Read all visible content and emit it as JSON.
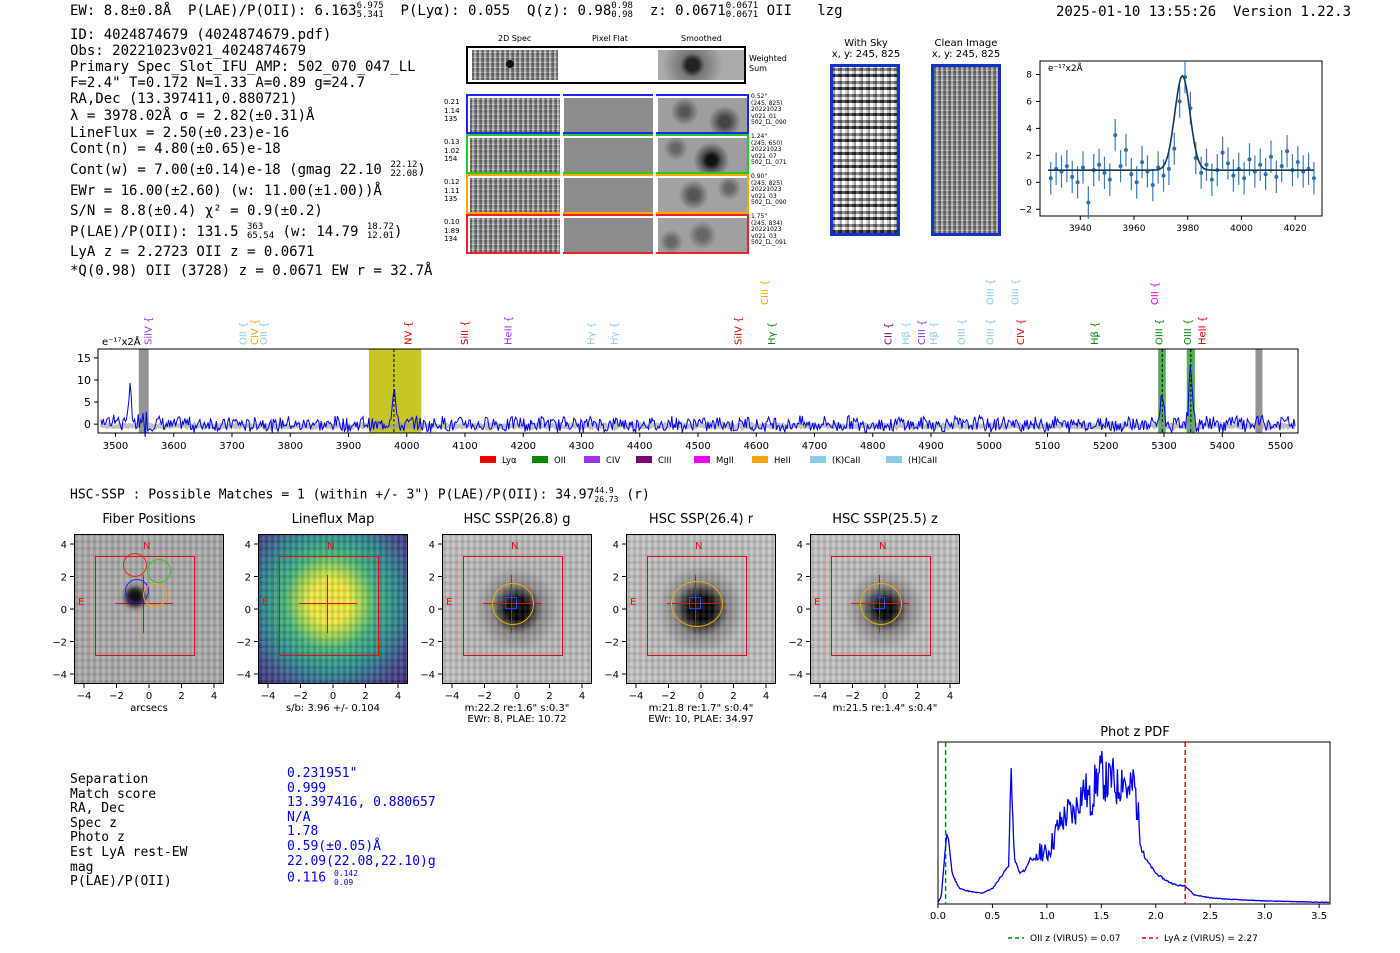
{
  "header": {
    "ew": "EW: 8.8±0.8Å",
    "plae_label": "P(LAE)/P(OII): 6.163",
    "plae_hi": "6.975",
    "plae_lo": "5.341",
    "plya": "P(Lyα): 0.055",
    "qz_label": "Q(z): 0.98",
    "qz_hi": "0.98",
    "qz_lo": "0.98",
    "z_label": "z: 0.0671",
    "z_hi": "0.0671",
    "z_lo": "0.0671",
    "line": "OII",
    "tag": "lzg",
    "timestamp": "2025-01-10 13:55:26",
    "version": "Version 1.22.3"
  },
  "info": {
    "id": "ID: 4024874679 (4024874679.pdf)",
    "obs": "Obs: 20221023v021_4024874679",
    "primary": "Primary Spec_Slot_IFU_AMP: 502_070_047_LL",
    "params": "F=2.4\"  T=0.172  N=1.33  A=0.89  g=24.7",
    "radec": "RA,Dec (13.397411,0.880721)",
    "lambda": "λ = 3978.02Å  σ = 2.82(±0.31)Å",
    "lineflux": "LineFlux = 2.50(±0.23)e-16",
    "contn": "Cont(n) = 4.80(±0.65)e-18",
    "contw": "Cont(w) = 7.00(±0.14)e-18 (gmag 22.10",
    "contw_hi": "22.12",
    "contw_lo": "22.08",
    "contw_end": ")",
    "ewr": "EWr = 16.00(±2.60) (w: 11.00(±1.00))Å",
    "sn": "S/N = 8.8(±0.4)  χ² = 0.9(±0.2)",
    "plae": "P(LAE)/P(OII): 131.5",
    "plae_hi": "363",
    "plae_lo": "65.54",
    "plae_w": "(w: 14.79",
    "plae_w_hi": "18.72",
    "plae_w_lo": "12.01",
    "plae_end": ")",
    "lya_z": "LyA z = 2.2723   OII z = 0.0671",
    "qline": "*Q(0.98) OII (3728) z = 0.0671  EW r = 32.7Å"
  },
  "spec2d": {
    "col_titles": [
      "2D Spec",
      "Pixel Flat",
      "Smoothed"
    ],
    "weighted_label": [
      "Weighted",
      "Sum"
    ],
    "rows": [
      {
        "left": [
          "0.21",
          "1.14",
          "135"
        ],
        "right": [
          "0.52\"",
          "(245, 825)",
          "20221023",
          "v021_01",
          "502_LL_090"
        ],
        "color": "#2222ff"
      },
      {
        "left": [
          "0.13",
          "1.02",
          "154"
        ],
        "right": [
          "1.24\"",
          "(245, 650)",
          "20221023",
          "v021_07",
          "502_LL_071"
        ],
        "color": "#22cc22"
      },
      {
        "left": [
          "0.12",
          "1.11",
          "135"
        ],
        "right": [
          "0.90\"",
          "(245, 825)",
          "20221023",
          "v021_03",
          "502_LL_090"
        ],
        "color": "#ffa500"
      },
      {
        "left": [
          "0.10",
          "1.89",
          "134"
        ],
        "right": [
          "1.75\"",
          "(245, 834)",
          "20221023",
          "v021_03",
          "502_LL_091"
        ],
        "color": "#ee2222"
      }
    ]
  },
  "cutouts": {
    "with_sky_title": "With Sky",
    "with_sky_sub": "x, y: 245, 825",
    "clean_title": "Clean Image",
    "clean_sub": "x, y: 245, 825"
  },
  "zoom_chart": {
    "unit_label": "e⁻¹⁷x2Å",
    "x_ticks": [
      "3940",
      "3960",
      "3980",
      "4000",
      "4020"
    ],
    "y_ticks": [
      "8",
      "6",
      "4",
      "2",
      "0",
      "−2"
    ]
  },
  "chart_data": [
    {
      "type": "scatter",
      "title": "",
      "xlabel": "",
      "ylabel": "e-17 x2Å",
      "xlim": [
        3925,
        4030
      ],
      "ylim": [
        -2.5,
        9
      ],
      "fit": {
        "center": 3978.02,
        "sigma": 2.82,
        "amplitude": 7.0,
        "baseline": 0.9
      },
      "x": [
        3929,
        3931,
        3933,
        3935,
        3937,
        3939,
        3941,
        3943,
        3945,
        3947,
        3949,
        3951,
        3953,
        3955,
        3957,
        3959,
        3961,
        3963,
        3965,
        3967,
        3969,
        3971,
        3973,
        3975,
        3977,
        3979,
        3981,
        3983,
        3985,
        3987,
        3989,
        3991,
        3993,
        3995,
        3997,
        3999,
        4001,
        4003,
        4005,
        4007,
        4009,
        4011,
        4013,
        4015,
        4017,
        4019,
        4021,
        4023,
        4025,
        4027
      ],
      "y": [
        0.3,
        1.0,
        0.8,
        1.2,
        0.4,
        0.0,
        1.1,
        -1.5,
        0.9,
        1.3,
        0.7,
        0.2,
        3.5,
        1.2,
        2.4,
        0.6,
        0.0,
        1.5,
        0.8,
        -0.2,
        1.1,
        0.5,
        1.0,
        2.5,
        6.0,
        7.8,
        5.5,
        1.8,
        0.7,
        1.3,
        0.2,
        0.9,
        2.2,
        1.4,
        0.5,
        1.0,
        0.3,
        1.7,
        0.8,
        1.3,
        0.6,
        1.9,
        0.4,
        1.2,
        2.3,
        0.9,
        1.5,
        0.8,
        1.0,
        0.3
      ],
      "err": 1.2,
      "x_ticks": [
        3940,
        3960,
        3980,
        4000,
        4020
      ],
      "y_ticks": [
        -2,
        0,
        2,
        4,
        6,
        8
      ]
    },
    {
      "type": "line",
      "title": "",
      "ylabel": "e-17 x2Å",
      "xlim": [
        3470,
        5530
      ],
      "ylim": [
        -2,
        17
      ],
      "x_ticks": [
        3500,
        3600,
        3700,
        3800,
        3900,
        4000,
        4100,
        4200,
        4300,
        4400,
        4500,
        4600,
        4700,
        4800,
        4900,
        5000,
        5100,
        5200,
        5300,
        5400,
        5500
      ],
      "y_ticks": [
        0,
        5,
        10,
        15
      ],
      "features": [
        {
          "name": "emission",
          "x": 3978,
          "amp": 8.0
        },
        {
          "name": "emission",
          "x": 5297,
          "amp": 6.5
        },
        {
          "name": "emission",
          "x": 5346,
          "amp": 13.0
        },
        {
          "name": "emission",
          "x": 3525,
          "amp": 5.0
        }
      ],
      "highlights": [
        {
          "x0": 3935,
          "x1": 4025,
          "color": "#bcbc00",
          "center": 3978
        },
        {
          "x0": 5290,
          "x1": 5303,
          "color": "#3c9c3c",
          "center": 5297
        },
        {
          "x0": 5339,
          "x1": 5353,
          "color": "#3c9c3c",
          "center": 5346
        },
        {
          "x0": 3540,
          "x1": 3557,
          "color": "#888888",
          "center": null
        },
        {
          "x0": 5457,
          "x1": 5469,
          "color": "#888888",
          "center": null
        }
      ],
      "line_labels": [
        {
          "label": "SiIV",
          "x": 3562,
          "color": "#9933ee",
          "level": 0
        },
        {
          "label": "OII",
          "x": 3725,
          "color": "#88ccee",
          "level": 0
        },
        {
          "label": "CIV",
          "x": 3745,
          "color": "#ffa500",
          "level": 0
        },
        {
          "label": "OII",
          "x": 3760,
          "color": "#88ccee",
          "level": 0
        },
        {
          "label": "NV",
          "x": 4008,
          "color": "#dd0000",
          "level": 0
        },
        {
          "label": "SiII",
          "x": 4105,
          "color": "#dd0000",
          "level": 0
        },
        {
          "label": "HeII",
          "x": 4180,
          "color": "#9933ee",
          "level": 0
        },
        {
          "label": "Hγ",
          "x": 4322,
          "color": "#88ccee",
          "level": 0
        },
        {
          "label": "Hγ",
          "x": 4362,
          "color": "#88ccee",
          "level": 0
        },
        {
          "label": "SiIV",
          "x": 4575,
          "color": "#dd0000",
          "level": 0
        },
        {
          "label": "CIII",
          "x": 4620,
          "color": "#ffa500",
          "level": 1
        },
        {
          "label": "Hγ",
          "x": 4632,
          "color": "#008800",
          "level": 0
        },
        {
          "label": "CII",
          "x": 4832,
          "color": "#7f007f",
          "level": 0
        },
        {
          "label": "Hβ",
          "x": 4862,
          "color": "#88ccee",
          "level": 0
        },
        {
          "label": "CIII",
          "x": 4890,
          "color": "#9933ee",
          "level": 0
        },
        {
          "label": "Hβ",
          "x": 4910,
          "color": "#88ccee",
          "level": 0
        },
        {
          "label": "OIII",
          "x": 4958,
          "color": "#88ccee",
          "level": 0
        },
        {
          "label": "OIII",
          "x": 5007,
          "color": "#88ccee",
          "level": 0
        },
        {
          "label": "OIII",
          "x": 5007,
          "color": "#88ccee",
          "level": 1
        },
        {
          "label": "OIII",
          "x": 5050,
          "color": "#88ccee",
          "level": 1
        },
        {
          "label": "CIV",
          "x": 5060,
          "color": "#dd0000",
          "level": 0
        },
        {
          "label": "Hβ",
          "x": 5187,
          "color": "#008800",
          "level": 0
        },
        {
          "label": "OII",
          "x": 5290,
          "color": "#ee00ee",
          "level": 1
        },
        {
          "label": "OIII",
          "x": 5297,
          "color": "#008800",
          "level": 0
        },
        {
          "label": "OIII",
          "x": 5346,
          "color": "#008800",
          "level": 0
        },
        {
          "label": "HeII",
          "x": 5371,
          "color": "#dd0000",
          "level": 0
        }
      ],
      "legend": [
        {
          "label": "Lyα",
          "color": "#ee0000"
        },
        {
          "label": "OII",
          "color": "#008800"
        },
        {
          "label": "CIV",
          "color": "#9933ee"
        },
        {
          "label": "CIII",
          "color": "#7f007f"
        },
        {
          "label": "MgII",
          "color": "#ee00ee"
        },
        {
          "label": "HeII",
          "color": "#ffa500"
        },
        {
          "label": "(K)CaII",
          "color": "#88ccee"
        },
        {
          "label": "(H)CaII",
          "color": "#88ccee"
        }
      ]
    },
    {
      "type": "line",
      "title": "Phot z PDF",
      "xlim": [
        0,
        3.6
      ],
      "x_ticks": [
        0.0,
        0.5,
        1.0,
        1.5,
        2.0,
        2.5,
        3.0,
        3.5
      ],
      "vlines": [
        {
          "x": 0.07,
          "color": "#008800",
          "label": "OII z (VIRUS) = 0.07"
        },
        {
          "x": 2.27,
          "color": "#dd0000",
          "label": "LyA z (VIRUS) = 2.27"
        }
      ],
      "x": [
        0.0,
        0.03,
        0.06,
        0.08,
        0.1,
        0.13,
        0.16,
        0.2,
        0.3,
        0.4,
        0.5,
        0.55,
        0.6,
        0.65,
        0.67,
        0.7,
        0.75,
        0.8,
        0.85,
        0.9,
        0.95,
        1.0,
        1.05,
        1.1,
        1.15,
        1.2,
        1.25,
        1.3,
        1.35,
        1.4,
        1.45,
        1.5,
        1.55,
        1.6,
        1.65,
        1.7,
        1.75,
        1.8,
        1.85,
        1.9,
        1.95,
        2.0,
        2.1,
        2.2,
        2.27,
        2.35,
        2.5,
        2.7,
        3.0,
        3.3,
        3.6
      ],
      "y": [
        0.01,
        0.05,
        0.3,
        0.45,
        0.4,
        0.2,
        0.15,
        0.1,
        0.08,
        0.07,
        0.1,
        0.15,
        0.2,
        0.25,
        0.9,
        0.3,
        0.2,
        0.22,
        0.3,
        0.28,
        0.35,
        0.32,
        0.4,
        0.5,
        0.55,
        0.6,
        0.58,
        0.7,
        0.75,
        0.65,
        0.8,
        0.85,
        0.78,
        0.82,
        0.75,
        0.85,
        0.7,
        0.8,
        0.5,
        0.3,
        0.25,
        0.2,
        0.15,
        0.12,
        0.12,
        0.06,
        0.04,
        0.03,
        0.02,
        0.015,
        0.01
      ]
    }
  ],
  "hsc": {
    "summary": "HSC-SSP : Possible Matches = 1 (within +/- 3\")  P(LAE)/P(OII): 34.97",
    "summary_hi": "44.9",
    "summary_lo": "26.73",
    "summary_band": "(r)"
  },
  "panels": [
    {
      "title": "Fiber Positions",
      "xlabel": "arcsecs",
      "caption2": ""
    },
    {
      "title": "Lineflux Map",
      "xlabel": "s/b: 3.96 +/- 0.104",
      "caption2": ""
    },
    {
      "title": "HSC SSP(26.8) g",
      "xlabel": "m:22.2  re:1.6\"  s:0.3\"",
      "caption2": "EWr: 8, PLAE: 10.72"
    },
    {
      "title": "HSC SSP(26.4) r",
      "xlabel": "m:21.8  re:1.7\"  s:0.4\"",
      "caption2": "EWr: 10, PLAE: 34.97"
    },
    {
      "title": "HSC SSP(25.5) z",
      "xlabel": "m:21.5  re:1.4\"  s:0.4\"",
      "caption2": ""
    }
  ],
  "panel_ticks": {
    "x": [
      "−4",
      "−2",
      "0",
      "2",
      "4"
    ],
    "y": [
      "4",
      "2",
      "0",
      "−2",
      "−4"
    ],
    "north": "N",
    "east": "E"
  },
  "match_table": {
    "labels": [
      "Separation",
      "Match score",
      "RA, Dec",
      "Spec z",
      "Photo z",
      "Est LyA rest-EW",
      "mag",
      "P(LAE)/P(OII)"
    ],
    "values": [
      "0.231951\"",
      "0.999",
      "13.397416, 0.880657",
      "N/A",
      "1.78",
      "0.59(±0.05)Å",
      "22.09(22.08,22.10)g",
      "0.116"
    ],
    "plae_hi": "0.142",
    "plae_lo": "0.09"
  },
  "photz": {
    "title": "Phot z PDF",
    "x_ticks": [
      "0.0",
      "0.5",
      "1.0",
      "1.5",
      "2.0",
      "2.5",
      "3.0",
      "3.5"
    ],
    "legend_oii": "OII z (VIRUS) = 0.07",
    "legend_lya": "LyA z (VIRUS) = 2.27"
  }
}
